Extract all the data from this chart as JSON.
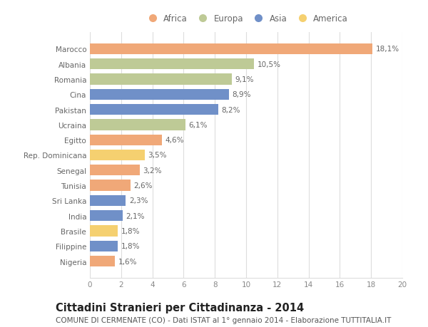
{
  "countries": [
    "Marocco",
    "Albania",
    "Romania",
    "Cina",
    "Pakistan",
    "Ucraina",
    "Egitto",
    "Rep. Dominicana",
    "Senegal",
    "Tunisia",
    "Sri Lanka",
    "India",
    "Brasile",
    "Filippine",
    "Nigeria"
  ],
  "values": [
    18.1,
    10.5,
    9.1,
    8.9,
    8.2,
    6.1,
    4.6,
    3.5,
    3.2,
    2.6,
    2.3,
    2.1,
    1.8,
    1.8,
    1.6
  ],
  "labels": [
    "18,1%",
    "10,5%",
    "9,1%",
    "8,9%",
    "8,2%",
    "6,1%",
    "4,6%",
    "3,5%",
    "3,2%",
    "2,6%",
    "2,3%",
    "2,1%",
    "1,8%",
    "1,8%",
    "1,6%"
  ],
  "continents": [
    "Africa",
    "Europa",
    "Europa",
    "Asia",
    "Asia",
    "Europa",
    "Africa",
    "America",
    "Africa",
    "Africa",
    "Asia",
    "Asia",
    "America",
    "Asia",
    "Africa"
  ],
  "colors": {
    "Africa": "#F0A878",
    "Europa": "#BECA96",
    "Asia": "#7090C8",
    "America": "#F5D070"
  },
  "legend_order": [
    "Africa",
    "Europa",
    "Asia",
    "America"
  ],
  "xlim": [
    0,
    20
  ],
  "xticks": [
    0,
    2,
    4,
    6,
    8,
    10,
    12,
    14,
    16,
    18,
    20
  ],
  "title": "Cittadini Stranieri per Cittadinanza - 2014",
  "subtitle": "COMUNE DI CERMENATE (CO) - Dati ISTAT al 1° gennaio 2014 - Elaborazione TUTTITALIA.IT",
  "background_color": "#ffffff",
  "grid_color": "#dddddd",
  "bar_height": 0.72,
  "title_fontsize": 10.5,
  "subtitle_fontsize": 7.5,
  "label_fontsize": 7.5,
  "tick_fontsize": 7.5,
  "legend_fontsize": 8.5
}
